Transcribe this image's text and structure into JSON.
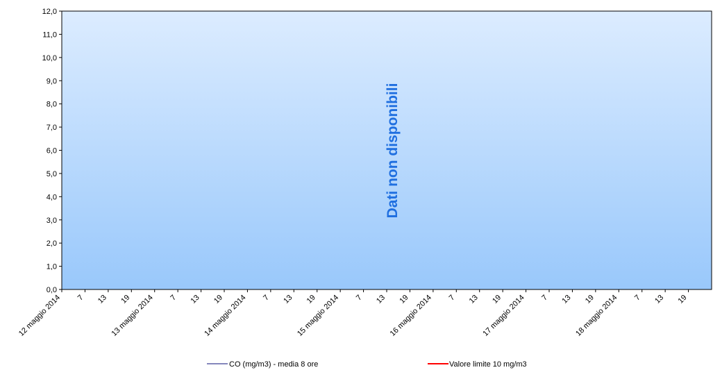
{
  "chart_data": {
    "type": "line",
    "title": "",
    "xlabel": "",
    "ylabel": "",
    "ylim": [
      0,
      12
    ],
    "y_ticks": [
      "0,0",
      "1,0",
      "2,0",
      "3,0",
      "4,0",
      "5,0",
      "6,0",
      "7,0",
      "8,0",
      "9,0",
      "10,0",
      "11,0",
      "12,0"
    ],
    "x_ticks": [
      "12 maggio 2014",
      "7",
      "13",
      "19",
      "13 maggio 2014",
      "7",
      "13",
      "19",
      "14 maggio 2014",
      "7",
      "13",
      "19",
      "15 maggio 2014",
      "7",
      "13",
      "19",
      "16 maggio 2014",
      "7",
      "13",
      "19",
      "17 maggio 2014",
      "7",
      "13",
      "19",
      "18 maggio 2014",
      "7",
      "13",
      "19"
    ],
    "overlay_text": "Dati non disponibili",
    "series": [
      {
        "name": "CO (mg/m3) - media 8 ore",
        "color": "#5b5ea6",
        "values": []
      },
      {
        "name": "Valore limite 10 mg/m3",
        "color": "#ff0000",
        "values": []
      }
    ],
    "legend_position": "bottom",
    "grid": false,
    "plot_gradient": {
      "top": "#dcecff",
      "bottom": "#99c8fb"
    },
    "overlay_color": "#1f6fe0"
  }
}
